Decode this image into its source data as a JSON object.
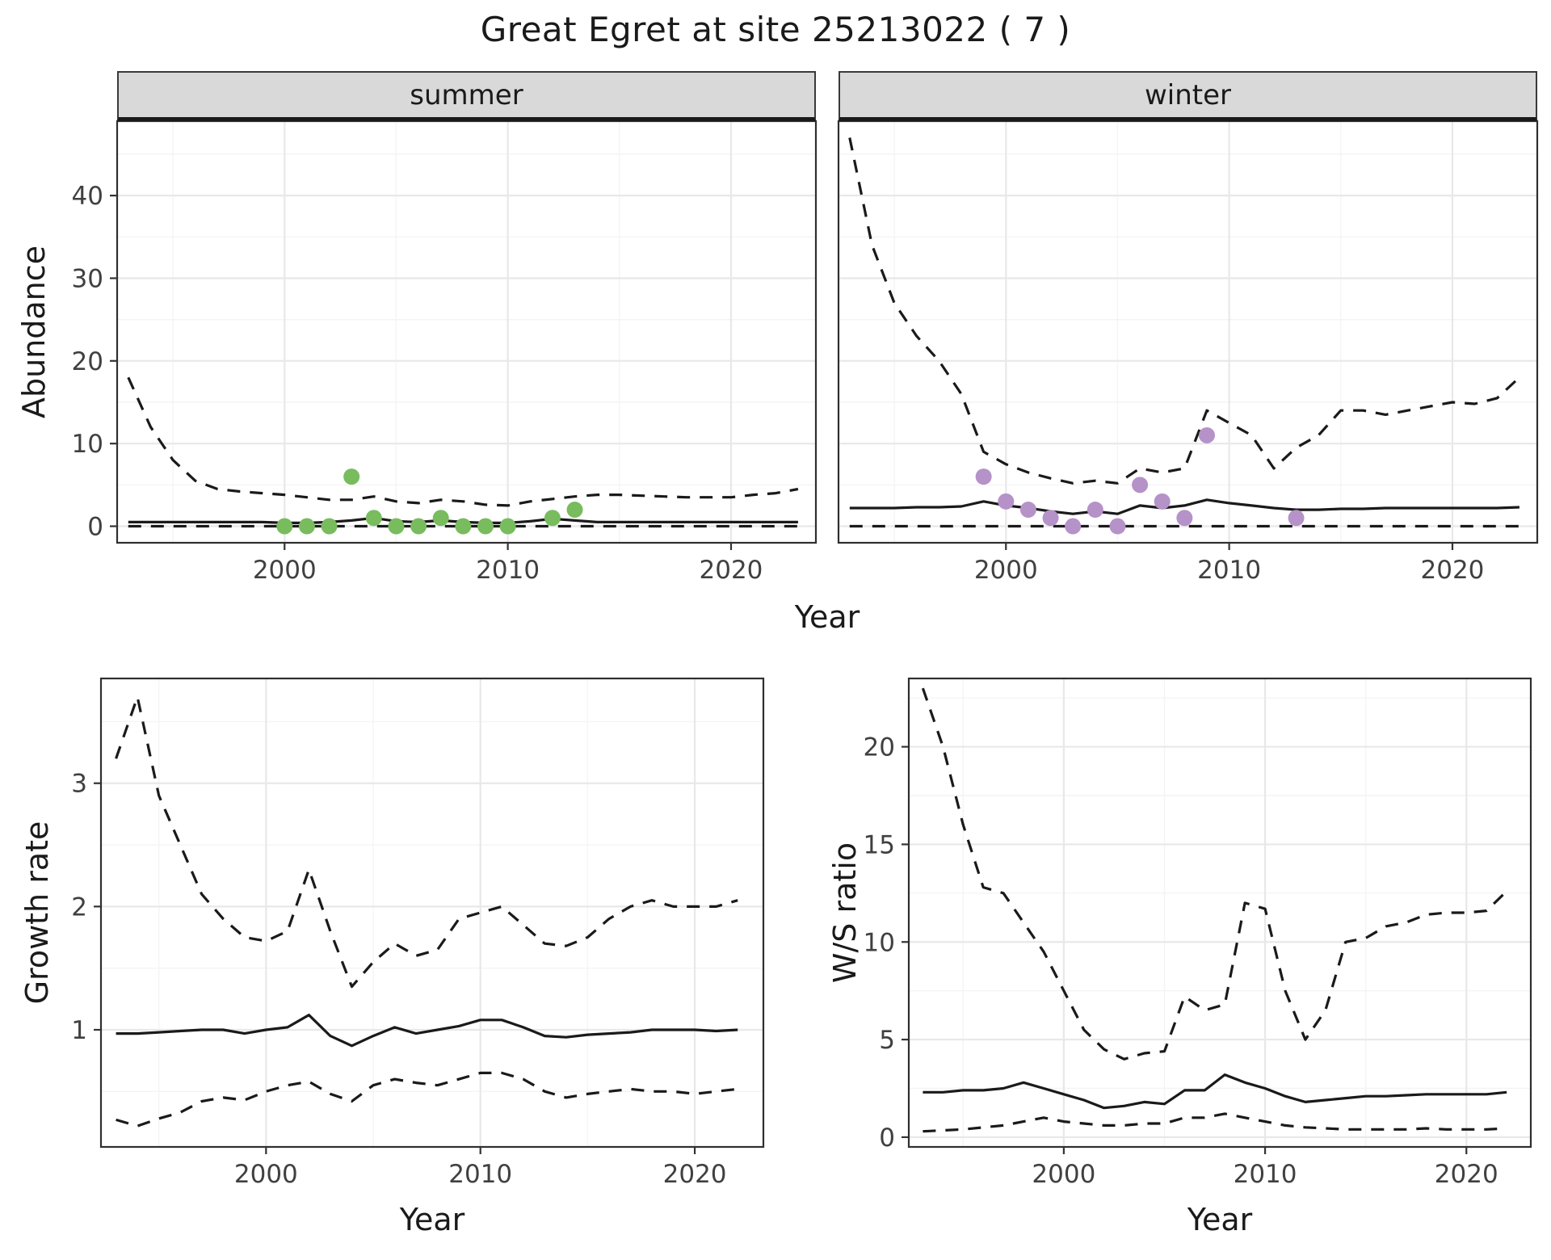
{
  "title": "Great Egret at site 25213022 ( 7 )",
  "colors": {
    "summer_point": "#78bc5e",
    "winter_point": "#b592c8",
    "line": "#1a1a1a",
    "strip_bg": "#d9d9d9",
    "grid_major": "#e8e8e8",
    "grid_minor": "#f4f4f4",
    "panel_border": "#2f2f2f",
    "tick": "#333333",
    "tick_label": "#404040"
  },
  "chart_data": [
    {
      "id": "abundance-summer",
      "type": "line",
      "facet_label": "summer",
      "ylabel": "Abundance",
      "xlabel": "Year",
      "xlim": [
        1992.5,
        2023.8
      ],
      "ylim": [
        -2,
        49
      ],
      "xticks": [
        2000,
        2010,
        2020
      ],
      "xtick_labels": [
        "2000",
        "2010",
        "2020"
      ],
      "xminor": [
        1995,
        2005,
        2015
      ],
      "yticks": [
        0,
        10,
        20,
        30,
        40
      ],
      "ytick_labels": [
        "0",
        "10",
        "20",
        "30",
        "40"
      ],
      "yminor": [
        5,
        15,
        25,
        35,
        45
      ],
      "x": [
        1993,
        1994,
        1995,
        1996,
        1997,
        1998,
        1999,
        2000,
        2001,
        2002,
        2003,
        2004,
        2005,
        2006,
        2007,
        2008,
        2009,
        2010,
        2011,
        2012,
        2013,
        2014,
        2015,
        2016,
        2017,
        2018,
        2019,
        2020,
        2021,
        2022,
        2023
      ],
      "series": [
        {
          "name": "upper_ci",
          "style": "dashed",
          "values": [
            18,
            12,
            8,
            5.5,
            4.5,
            4.2,
            4,
            3.8,
            3.5,
            3.2,
            3.2,
            3.6,
            3,
            2.8,
            3.2,
            3,
            2.6,
            2.5,
            3,
            3.3,
            3.6,
            3.8,
            3.8,
            3.7,
            3.6,
            3.5,
            3.5,
            3.5,
            3.8,
            4,
            4.5
          ]
        },
        {
          "name": "median",
          "style": "solid",
          "values": [
            0.5,
            0.5,
            0.5,
            0.5,
            0.5,
            0.5,
            0.5,
            0.4,
            0.4,
            0.5,
            0.7,
            1,
            0.6,
            0.5,
            0.7,
            0.5,
            0.4,
            0.4,
            0.6,
            0.9,
            0.7,
            0.5,
            0.5,
            0.5,
            0.5,
            0.5,
            0.5,
            0.5,
            0.5,
            0.5,
            0.5
          ]
        },
        {
          "name": "lower_ci",
          "style": "dashed",
          "values": [
            0,
            0,
            0,
            0,
            0,
            0,
            0,
            0,
            0,
            0,
            0,
            0,
            0,
            0,
            0,
            0,
            0,
            0,
            0,
            0,
            0,
            0,
            0,
            0,
            0,
            0,
            0,
            0,
            0,
            0,
            0
          ]
        }
      ],
      "points": {
        "color": "#78bc5e",
        "x": [
          2000,
          2001,
          2002,
          2003,
          2004,
          2005,
          2006,
          2007,
          2008,
          2009,
          2010,
          2012,
          2013
        ],
        "y": [
          0,
          0,
          0,
          6,
          1,
          0,
          0,
          1,
          0,
          0,
          0,
          1,
          2
        ]
      }
    },
    {
      "id": "abundance-winter",
      "type": "line",
      "facet_label": "winter",
      "ylabel": "Abundance",
      "xlabel": "Year",
      "xlim": [
        1992.5,
        2023.8
      ],
      "ylim": [
        -2,
        49
      ],
      "xticks": [
        2000,
        2010,
        2020
      ],
      "xtick_labels": [
        "2000",
        "2010",
        "2020"
      ],
      "xminor": [
        1995,
        2005,
        2015
      ],
      "yticks": [
        0,
        10,
        20,
        30,
        40
      ],
      "ytick_labels": [
        "0",
        "10",
        "20",
        "30",
        "40"
      ],
      "yminor": [
        5,
        15,
        25,
        35,
        45
      ],
      "x": [
        1993,
        1994,
        1995,
        1996,
        1997,
        1998,
        1999,
        2000,
        2001,
        2002,
        2003,
        2004,
        2005,
        2006,
        2007,
        2008,
        2009,
        2010,
        2011,
        2012,
        2013,
        2014,
        2015,
        2016,
        2017,
        2018,
        2019,
        2020,
        2021,
        2022,
        2023
      ],
      "series": [
        {
          "name": "upper_ci",
          "style": "dashed",
          "values": [
            47,
            34,
            27,
            23,
            20,
            16,
            9,
            7.5,
            6.5,
            5.8,
            5.2,
            5.5,
            5.2,
            7,
            6.5,
            7,
            14,
            12.5,
            11,
            7,
            9.5,
            11,
            14,
            14,
            13.5,
            14,
            14.5,
            15,
            14.8,
            15.5,
            18
          ]
        },
        {
          "name": "median",
          "style": "solid",
          "values": [
            2.2,
            2.2,
            2.2,
            2.3,
            2.3,
            2.4,
            3,
            2.5,
            2.2,
            1.8,
            1.5,
            1.8,
            1.5,
            2.5,
            2.2,
            2.5,
            3.2,
            2.8,
            2.5,
            2.2,
            2,
            2,
            2.1,
            2.1,
            2.2,
            2.2,
            2.2,
            2.2,
            2.2,
            2.2,
            2.3
          ]
        },
        {
          "name": "lower_ci",
          "style": "dashed",
          "values": [
            0,
            0,
            0,
            0,
            0,
            0,
            0,
            0,
            0,
            0,
            0,
            0,
            0,
            0,
            0,
            0,
            0,
            0,
            0,
            0,
            0,
            0,
            0,
            0,
            0,
            0,
            0,
            0,
            0,
            0,
            0
          ]
        }
      ],
      "points": {
        "color": "#b592c8",
        "x": [
          1999,
          2000,
          2001,
          2002,
          2003,
          2004,
          2005,
          2006,
          2007,
          2008,
          2009,
          2013
        ],
        "y": [
          6,
          3,
          2,
          1,
          0,
          2,
          0,
          5,
          3,
          1,
          11,
          1
        ]
      }
    },
    {
      "id": "growth-rate",
      "type": "line",
      "ylabel": "Growth rate",
      "xlabel": "Year",
      "xlim": [
        1992.3,
        2023.2
      ],
      "ylim": [
        0.05,
        3.85
      ],
      "xticks": [
        2000,
        2010,
        2020
      ],
      "xtick_labels": [
        "2000",
        "2010",
        "2020"
      ],
      "xminor": [
        1995,
        2005,
        2015
      ],
      "yticks": [
        1,
        2,
        3
      ],
      "ytick_labels": [
        "1",
        "2",
        "3"
      ],
      "yminor": [
        0.5,
        1.5,
        2.5,
        3.5
      ],
      "x": [
        1993,
        1994,
        1995,
        1996,
        1997,
        1998,
        1999,
        2000,
        2001,
        2002,
        2003,
        2004,
        2005,
        2006,
        2007,
        2008,
        2009,
        2010,
        2011,
        2012,
        2013,
        2014,
        2015,
        2016,
        2017,
        2018,
        2019,
        2020,
        2021,
        2022
      ],
      "series": [
        {
          "name": "upper_ci",
          "style": "dashed",
          "values": [
            3.2,
            3.7,
            2.9,
            2.5,
            2.1,
            1.9,
            1.75,
            1.72,
            1.8,
            2.3,
            1.8,
            1.35,
            1.55,
            1.7,
            1.6,
            1.65,
            1.9,
            1.95,
            2,
            1.85,
            1.7,
            1.68,
            1.75,
            1.9,
            2,
            2.05,
            2,
            2,
            2,
            2.05
          ]
        },
        {
          "name": "median",
          "style": "solid",
          "values": [
            0.97,
            0.97,
            0.98,
            0.99,
            1,
            1,
            0.97,
            1,
            1.02,
            1.12,
            0.95,
            0.87,
            0.95,
            1.02,
            0.97,
            1,
            1.03,
            1.08,
            1.08,
            1.02,
            0.95,
            0.94,
            0.96,
            0.97,
            0.98,
            1,
            1,
            1,
            0.99,
            1
          ]
        },
        {
          "name": "lower_ci",
          "style": "dashed",
          "values": [
            0.27,
            0.22,
            0.28,
            0.33,
            0.42,
            0.45,
            0.43,
            0.5,
            0.55,
            0.58,
            0.48,
            0.42,
            0.55,
            0.6,
            0.57,
            0.55,
            0.6,
            0.65,
            0.65,
            0.6,
            0.5,
            0.45,
            0.48,
            0.5,
            0.52,
            0.5,
            0.5,
            0.48,
            0.5,
            0.52
          ]
        }
      ]
    },
    {
      "id": "ws-ratio",
      "type": "line",
      "ylabel": "W/S ratio",
      "xlabel": "Year",
      "xlim": [
        1992.3,
        2023.2
      ],
      "ylim": [
        -0.5,
        23.5
      ],
      "xticks": [
        2000,
        2010,
        2020
      ],
      "xtick_labels": [
        "2000",
        "2010",
        "2020"
      ],
      "xminor": [
        1995,
        2005,
        2015
      ],
      "yticks": [
        0,
        5,
        10,
        15,
        20
      ],
      "ytick_labels": [
        "0",
        "5",
        "10",
        "15",
        "20"
      ],
      "yminor": [
        2.5,
        7.5,
        12.5,
        17.5,
        22.5
      ],
      "x": [
        1993,
        1994,
        1995,
        1996,
        1997,
        1998,
        1999,
        2000,
        2001,
        2002,
        2003,
        2004,
        2005,
        2006,
        2007,
        2008,
        2009,
        2010,
        2011,
        2012,
        2013,
        2014,
        2015,
        2016,
        2017,
        2018,
        2019,
        2020,
        2021,
        2022
      ],
      "series": [
        {
          "name": "upper_ci",
          "style": "dashed",
          "values": [
            23,
            20,
            16,
            12.8,
            12.5,
            11,
            9.5,
            7.5,
            5.5,
            4.5,
            4,
            4.3,
            4.4,
            7.2,
            6.5,
            6.8,
            12,
            11.7,
            7.5,
            5,
            6.5,
            10,
            10.2,
            10.8,
            11,
            11.4,
            11.5,
            11.5,
            11.6,
            12.6
          ]
        },
        {
          "name": "median",
          "style": "solid",
          "values": [
            2.3,
            2.3,
            2.4,
            2.4,
            2.5,
            2.8,
            2.5,
            2.2,
            1.9,
            1.5,
            1.6,
            1.8,
            1.7,
            2.4,
            2.4,
            3.2,
            2.8,
            2.5,
            2.1,
            1.8,
            1.9,
            2,
            2.1,
            2.1,
            2.15,
            2.2,
            2.2,
            2.2,
            2.2,
            2.3
          ]
        },
        {
          "name": "lower_ci",
          "style": "dashed",
          "values": [
            0.3,
            0.35,
            0.4,
            0.5,
            0.6,
            0.8,
            1,
            0.8,
            0.7,
            0.6,
            0.6,
            0.7,
            0.7,
            1,
            1,
            1.2,
            1,
            0.8,
            0.6,
            0.5,
            0.45,
            0.4,
            0.4,
            0.4,
            0.4,
            0.45,
            0.4,
            0.4,
            0.4,
            0.45
          ]
        }
      ]
    }
  ]
}
